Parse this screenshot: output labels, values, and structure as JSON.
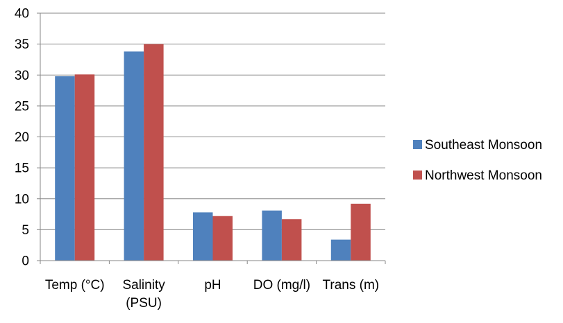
{
  "chart_data": {
    "type": "bar",
    "title": "",
    "xlabel": "",
    "ylabel": "",
    "categories": [
      [
        "Temp (°C)"
      ],
      [
        "Salinity",
        "(PSU)"
      ],
      [
        "pH"
      ],
      [
        "DO (mg/l)"
      ],
      [
        "Trans (m)"
      ]
    ],
    "series": [
      {
        "name": "Southeast Monsoon",
        "color": "#4F81BD",
        "values": [
          29.8,
          33.8,
          7.8,
          8.1,
          3.4
        ]
      },
      {
        "name": "Northwest Monsoon",
        "color": "#C0504D",
        "values": [
          30.1,
          35.0,
          7.2,
          6.7,
          9.2
        ]
      }
    ],
    "ylim": [
      0,
      40
    ],
    "yticks": [
      "0",
      "5",
      "10",
      "15",
      "20",
      "25",
      "30",
      "35",
      "40"
    ],
    "grid": true,
    "legend_position": "right"
  }
}
